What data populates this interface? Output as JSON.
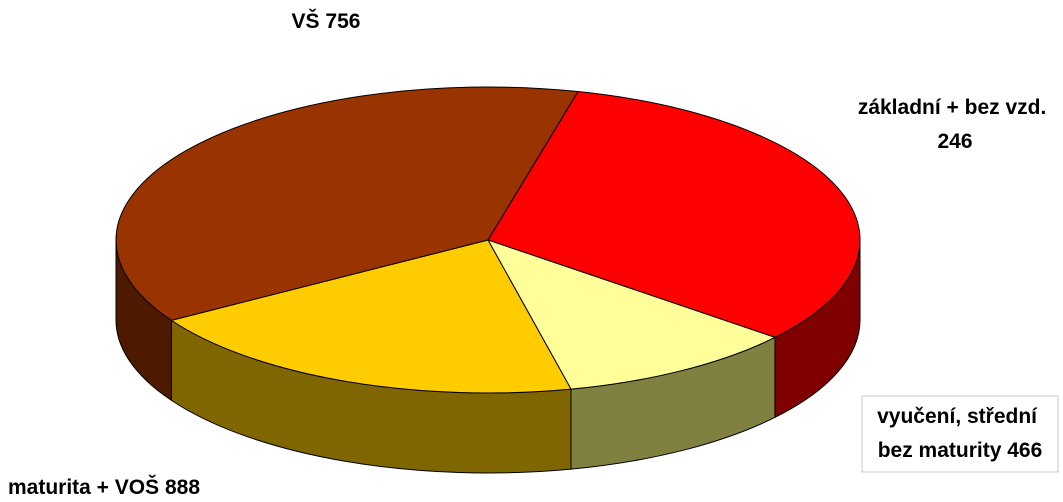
{
  "chart_data": {
    "type": "pie",
    "style": "3d",
    "title": "",
    "slices": [
      {
        "label_lines": [
          "VŠ 756"
        ],
        "value": 756,
        "color": "#ff0000",
        "side_color": "#800000"
      },
      {
        "label_lines": [
          "základní + bez vzd.",
          "246"
        ],
        "value": 246,
        "color": "#ffff99",
        "side_color": "#808040"
      },
      {
        "label_lines": [
          "vyučení, střední",
          "bez maturity 466"
        ],
        "value": 466,
        "color": "#ffcc00",
        "side_color": "#806600"
      },
      {
        "label_lines": [
          "maturita + VOŠ 888"
        ],
        "value": 888,
        "color": "#993300",
        "side_color": "#4d1a00"
      }
    ],
    "legend": "none"
  }
}
